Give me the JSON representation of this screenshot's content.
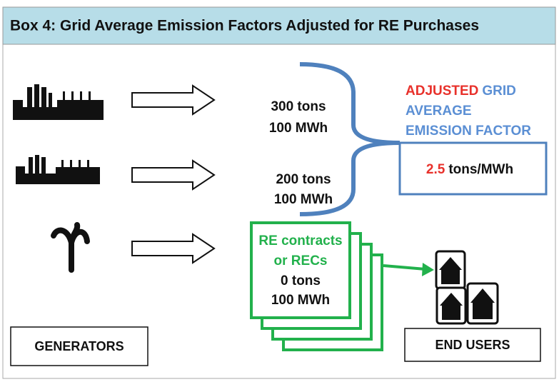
{
  "header": {
    "title": "Box 4: Grid Average Emission Factors Adjusted for RE Purchases"
  },
  "flows": [
    {
      "tons": "300 tons",
      "energy": "100 MWh"
    },
    {
      "tons": "200 tons",
      "energy": "100 MWh"
    }
  ],
  "re_box": {
    "lines": [
      "RE contracts",
      "or RECs",
      "0 tons",
      "100 MWh"
    ]
  },
  "factor": {
    "adjusted": "ADJUSTED",
    "grid": "GRID",
    "average": "AVERAGE",
    "emission": "EMISSION FACTOR",
    "value": "2.5",
    "unit": "tons/MWh"
  },
  "labels": {
    "generators": "GENERATORS",
    "end_users": "END USERS"
  }
}
